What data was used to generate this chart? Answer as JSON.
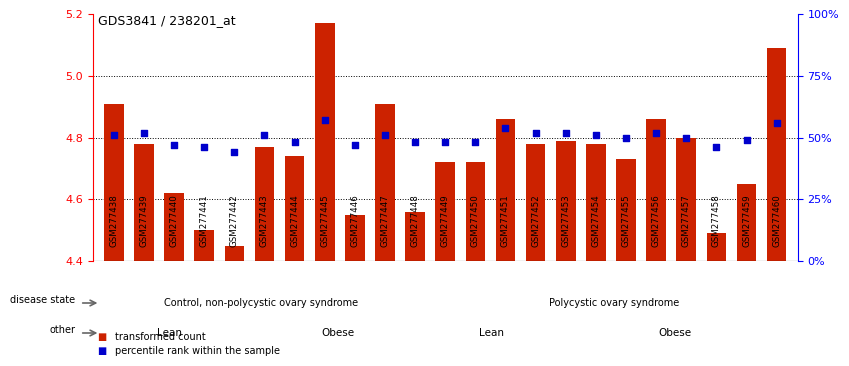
{
  "title": "GDS3841 / 238201_at",
  "samples": [
    "GSM277438",
    "GSM277439",
    "GSM277440",
    "GSM277441",
    "GSM277442",
    "GSM277443",
    "GSM277444",
    "GSM277445",
    "GSM277446",
    "GSM277447",
    "GSM277448",
    "GSM277449",
    "GSM277450",
    "GSM277451",
    "GSM277452",
    "GSM277453",
    "GSM277454",
    "GSM277455",
    "GSM277456",
    "GSM277457",
    "GSM277458",
    "GSM277459",
    "GSM277460"
  ],
  "bar_values": [
    4.91,
    4.78,
    4.62,
    4.5,
    4.45,
    4.77,
    4.74,
    5.17,
    4.55,
    4.91,
    4.56,
    4.72,
    4.72,
    4.86,
    4.78,
    4.79,
    4.78,
    4.73,
    4.86,
    4.8,
    4.49,
    4.65,
    5.09
  ],
  "blue_values": [
    51,
    52,
    47,
    46,
    44,
    51,
    48,
    57,
    47,
    51,
    48,
    48,
    48,
    54,
    52,
    52,
    51,
    50,
    52,
    50,
    46,
    49,
    56
  ],
  "ylim_left": [
    4.4,
    5.2
  ],
  "ylim_right": [
    0,
    100
  ],
  "yticks_left": [
    4.4,
    4.6,
    4.8,
    5.0,
    5.2
  ],
  "yticks_right": [
    0,
    25,
    50,
    75,
    100
  ],
  "bar_color": "#cc2200",
  "blue_color": "#0000cc",
  "grid_values": [
    4.6,
    4.8,
    5.0
  ],
  "disease_state_groups": [
    {
      "label": "Control, non-polycystic ovary syndrome",
      "start": 0,
      "end": 11,
      "color": "#88ee88"
    },
    {
      "label": "Polycystic ovary syndrome",
      "start": 11,
      "end": 23,
      "color": "#55dd55"
    }
  ],
  "other_groups": [
    {
      "label": "Lean",
      "start": 0,
      "end": 5,
      "color": "#ee99ee"
    },
    {
      "label": "Obese",
      "start": 5,
      "end": 11,
      "color": "#dd44dd"
    },
    {
      "label": "Lean",
      "start": 11,
      "end": 15,
      "color": "#ee99ee"
    },
    {
      "label": "Obese",
      "start": 15,
      "end": 23,
      "color": "#dd44dd"
    }
  ],
  "legend_items": [
    {
      "label": "transformed count",
      "color": "#cc2200"
    },
    {
      "label": "percentile rank within the sample",
      "color": "#0000cc"
    }
  ],
  "disease_state_label": "disease state",
  "other_label": "other",
  "bg_color": "#ffffff",
  "xticklabel_bg": "#d0d0d0"
}
